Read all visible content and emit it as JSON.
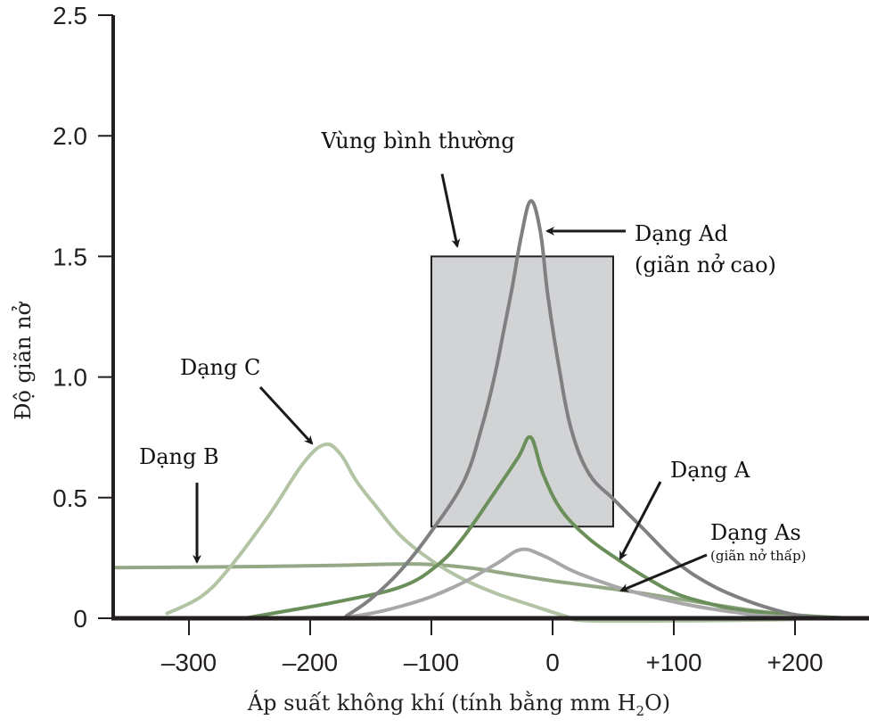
{
  "chart_data": {
    "type": "line",
    "title": "",
    "xlabel": "Áp suất không khí (tính bằng mm H₂O)",
    "xlabel_parts": {
      "main": "Áp suất không khí (tính bằng mm H",
      "sub": "2",
      "tail": "O)"
    },
    "ylabel": "Độ giãn nở",
    "xlim": [
      -362,
      262
    ],
    "ylim": [
      0,
      2.5
    ],
    "grid": false,
    "x_ticks": [
      {
        "value": -300,
        "label": "–300"
      },
      {
        "value": -200,
        "label": "–200"
      },
      {
        "value": -100,
        "label": "–100"
      },
      {
        "value": 0,
        "label": "0"
      },
      {
        "value": 100,
        "label": "+100"
      },
      {
        "value": 200,
        "label": "+200"
      }
    ],
    "y_ticks": [
      {
        "value": 0,
        "label": "0"
      },
      {
        "value": 0.5,
        "label": "0.5"
      },
      {
        "value": 1.0,
        "label": "1.0"
      },
      {
        "value": 1.5,
        "label": "1.5"
      },
      {
        "value": 2.0,
        "label": "2.0"
      },
      {
        "value": 2.5,
        "label": "2.5"
      }
    ],
    "normal_region": {
      "label": "Vùng bình thường",
      "x_range": [
        -100,
        50
      ],
      "y_range": [
        0.38,
        1.5
      ],
      "fill": "#d1d3d4",
      "stroke": "#231f20"
    },
    "series": [
      {
        "name": "Dạng B",
        "color": "#94a886",
        "points": [
          [
            -362,
            0.21
          ],
          [
            -300,
            0.212
          ],
          [
            -235,
            0.215
          ],
          [
            -170,
            0.22
          ],
          [
            -110,
            0.225
          ],
          [
            -70,
            0.21
          ],
          [
            -44,
            0.19
          ],
          [
            0,
            0.155
          ],
          [
            59,
            0.115
          ],
          [
            110,
            0.075
          ],
          [
            169,
            0.03
          ],
          [
            210,
            0.01
          ],
          [
            243,
            0
          ]
        ]
      },
      {
        "name": "Dạng C",
        "color": "#b3c4a5",
        "points": [
          [
            -318,
            0.02
          ],
          [
            -290,
            0.09
          ],
          [
            -268,
            0.2
          ],
          [
            -235,
            0.42
          ],
          [
            -206,
            0.64
          ],
          [
            -188,
            0.72
          ],
          [
            -175,
            0.68
          ],
          [
            -162,
            0.57
          ],
          [
            -145,
            0.46
          ],
          [
            -125,
            0.34
          ],
          [
            -100,
            0.24
          ],
          [
            -73,
            0.16
          ],
          [
            -45,
            0.1
          ],
          [
            -15,
            0.05
          ],
          [
            10,
            0.01
          ],
          [
            29,
            -0.01
          ],
          [
            118,
            -0.01
          ],
          [
            200,
            -0.005
          ]
        ]
      },
      {
        "name": "Dạng A",
        "color": "#6b8f5a",
        "points": [
          [
            -254,
            0
          ],
          [
            -220,
            0.03
          ],
          [
            -176,
            0.07
          ],
          [
            -125,
            0.13
          ],
          [
            -95,
            0.22
          ],
          [
            -73,
            0.34
          ],
          [
            -44,
            0.55
          ],
          [
            -28,
            0.67
          ],
          [
            -18,
            0.75
          ],
          [
            -8,
            0.6
          ],
          [
            7,
            0.45
          ],
          [
            30,
            0.33
          ],
          [
            55,
            0.24
          ],
          [
            80,
            0.16
          ],
          [
            103,
            0.1
          ],
          [
            130,
            0.06
          ],
          [
            154,
            0.035
          ],
          [
            206,
            0.01
          ],
          [
            250,
            0
          ]
        ]
      },
      {
        "name": "Dạng As",
        "color": "#a8a8a8",
        "points": [
          [
            -176,
            0
          ],
          [
            -150,
            0.02
          ],
          [
            -125,
            0.05
          ],
          [
            -100,
            0.09
          ],
          [
            -73,
            0.15
          ],
          [
            -45,
            0.23
          ],
          [
            -26,
            0.285
          ],
          [
            -8,
            0.26
          ],
          [
            15,
            0.2
          ],
          [
            35,
            0.16
          ],
          [
            59,
            0.12
          ],
          [
            90,
            0.08
          ],
          [
            118,
            0.05
          ],
          [
            150,
            0.025
          ],
          [
            176,
            0.01
          ],
          [
            230,
            0
          ]
        ]
      },
      {
        "name": "Dạng Ad",
        "color": "#808082",
        "points": [
          [
            -170,
            0.01
          ],
          [
            -150,
            0.08
          ],
          [
            -125,
            0.2
          ],
          [
            -100,
            0.36
          ],
          [
            -73,
            0.57
          ],
          [
            -58,
            0.8
          ],
          [
            -48,
            1.0
          ],
          [
            -40,
            1.2
          ],
          [
            -33,
            1.38
          ],
          [
            -26,
            1.58
          ],
          [
            -18,
            1.73
          ],
          [
            -10,
            1.6
          ],
          [
            -4,
            1.34
          ],
          [
            5,
            1.05
          ],
          [
            15,
            0.79
          ],
          [
            30,
            0.6
          ],
          [
            51,
            0.49
          ],
          [
            75,
            0.37
          ],
          [
            103,
            0.23
          ],
          [
            130,
            0.14
          ],
          [
            154,
            0.085
          ],
          [
            180,
            0.04
          ],
          [
            206,
            0.01
          ],
          [
            240,
            0
          ]
        ]
      }
    ],
    "annotations": [
      {
        "id": "vung",
        "text": "Vùng bình thường"
      },
      {
        "id": "ad",
        "text": "Dạng Ad",
        "subtext": "(giãn nở cao)"
      },
      {
        "id": "c",
        "text": "Dạng C"
      },
      {
        "id": "b",
        "text": "Dạng B"
      },
      {
        "id": "a",
        "text": "Dạng A"
      },
      {
        "id": "as",
        "text": "Dạng As",
        "subtext": "(giãn nở thấp)"
      }
    ]
  }
}
